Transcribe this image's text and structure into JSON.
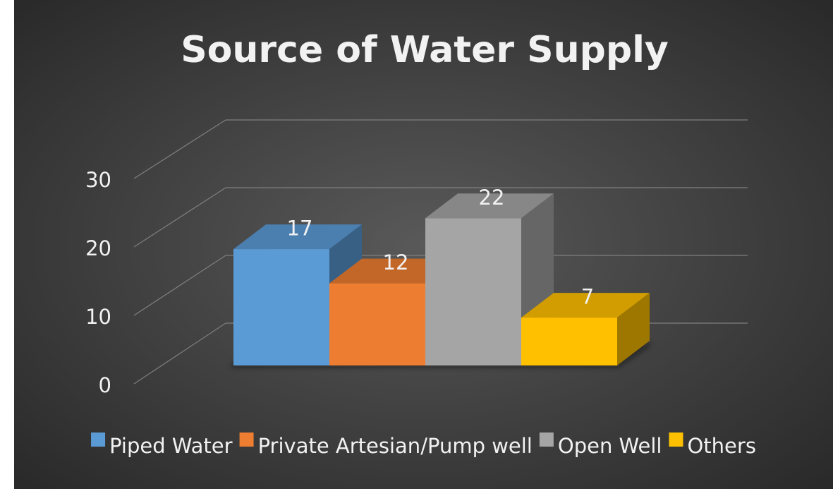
{
  "chart_data": {
    "type": "bar",
    "style": "3d-clustered-columns",
    "title": "Source of Water Supply",
    "xlabel": "",
    "ylabel": "",
    "ylim": [
      0,
      30
    ],
    "yticks": [
      0,
      10,
      20,
      30
    ],
    "grid": true,
    "legend_position": "bottom",
    "series": [
      {
        "name": "Piped Water",
        "value": 17,
        "color": "#5b9bd5"
      },
      {
        "name": "Private Artesian/Pump well",
        "value": 12,
        "color": "#ed7d31"
      },
      {
        "name": "Open Well",
        "value": 22,
        "color": "#a5a5a5"
      },
      {
        "name": "Others",
        "value": 7,
        "color": "#ffc000"
      }
    ]
  },
  "colors": {
    "background_center": "#555555",
    "background_edge": "#262626",
    "text": "#f2f2f2",
    "gridline": "#7f7f7f"
  }
}
